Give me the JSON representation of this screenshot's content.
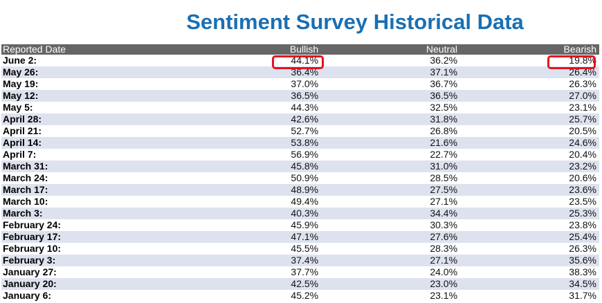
{
  "title": "Sentiment Survey Historical Data",
  "table": {
    "headers": {
      "date": "Reported Date",
      "bullish": "Bullish",
      "neutral": "Neutral",
      "bearish": "Bearish"
    },
    "rows": [
      {
        "date": "June 2:",
        "bullish": "44.1%",
        "neutral": "36.2%",
        "bearish": "19.8%"
      },
      {
        "date": "May 26:",
        "bullish": "36.4%",
        "neutral": "37.1%",
        "bearish": "26.4%"
      },
      {
        "date": "May 19:",
        "bullish": "37.0%",
        "neutral": "36.7%",
        "bearish": "26.3%"
      },
      {
        "date": "May 12:",
        "bullish": "36.5%",
        "neutral": "36.5%",
        "bearish": "27.0%"
      },
      {
        "date": "May 5:",
        "bullish": "44.3%",
        "neutral": "32.5%",
        "bearish": "23.1%"
      },
      {
        "date": "April 28:",
        "bullish": "42.6%",
        "neutral": "31.8%",
        "bearish": "25.7%"
      },
      {
        "date": "April 21:",
        "bullish": "52.7%",
        "neutral": "26.8%",
        "bearish": "20.5%"
      },
      {
        "date": "April 14:",
        "bullish": "53.8%",
        "neutral": "21.6%",
        "bearish": "24.6%"
      },
      {
        "date": "April 7:",
        "bullish": "56.9%",
        "neutral": "22.7%",
        "bearish": "20.4%"
      },
      {
        "date": "March 31:",
        "bullish": "45.8%",
        "neutral": "31.0%",
        "bearish": "23.2%"
      },
      {
        "date": "March 24:",
        "bullish": "50.9%",
        "neutral": "28.5%",
        "bearish": "20.6%"
      },
      {
        "date": "March 17:",
        "bullish": "48.9%",
        "neutral": "27.5%",
        "bearish": "23.6%"
      },
      {
        "date": "March 10:",
        "bullish": "49.4%",
        "neutral": "27.1%",
        "bearish": "23.5%"
      },
      {
        "date": "March 3:",
        "bullish": "40.3%",
        "neutral": "34.4%",
        "bearish": "25.3%"
      },
      {
        "date": "February 24:",
        "bullish": "45.9%",
        "neutral": "30.3%",
        "bearish": "23.8%"
      },
      {
        "date": "February 17:",
        "bullish": "47.1%",
        "neutral": "27.6%",
        "bearish": "25.4%"
      },
      {
        "date": "February 10:",
        "bullish": "45.5%",
        "neutral": "28.3%",
        "bearish": "26.3%"
      },
      {
        "date": "February 3:",
        "bullish": "37.4%",
        "neutral": "27.1%",
        "bearish": "35.6%"
      },
      {
        "date": "January 27:",
        "bullish": "37.7%",
        "neutral": "24.0%",
        "bearish": "38.3%"
      },
      {
        "date": "January 20:",
        "bullish": "42.5%",
        "neutral": "23.0%",
        "bearish": "34.5%"
      },
      {
        "date": "January 6:",
        "bullish": "45.2%",
        "neutral": "23.1%",
        "bearish": "31.7%"
      }
    ]
  },
  "colors": {
    "title": "#1a6fb3",
    "header_bg": "#666666",
    "stripe": "#dde2ee",
    "highlight": "#e8101e"
  }
}
